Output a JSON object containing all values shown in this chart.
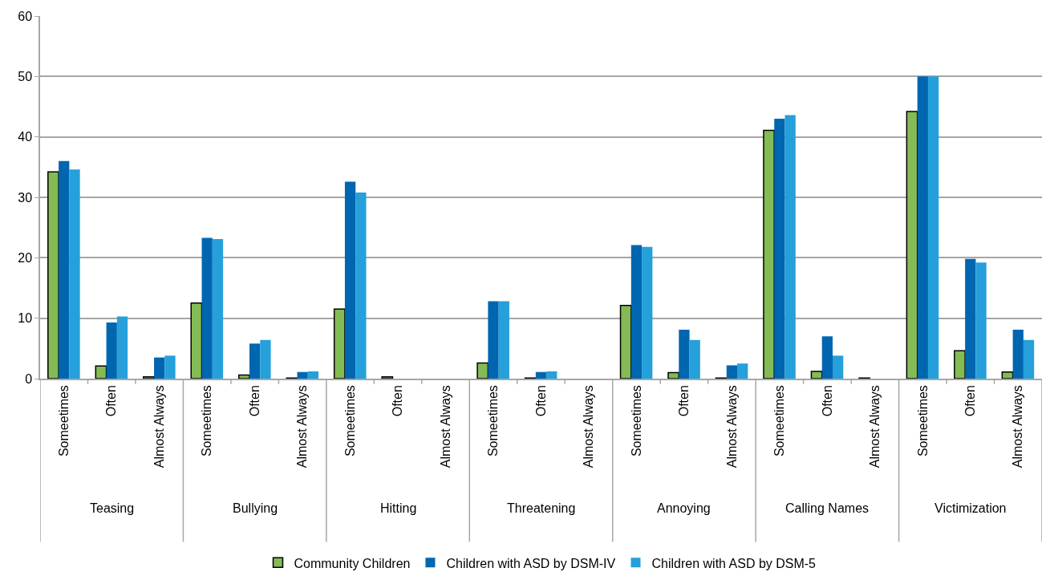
{
  "chart_data": {
    "type": "bar",
    "categories": [
      "Someetimes",
      "Often",
      "Almost Always",
      "Someetimes",
      "Often",
      "Almost Always",
      "Someetimes",
      "Often",
      "Almost Always",
      "Someetimes",
      "Often",
      "Almost Always",
      "Someetimes",
      "Often",
      "Almost Always",
      "Someetimes",
      "Often",
      "Almost Always",
      "Someetimes",
      "Often",
      "Almost Always"
    ],
    "annotations": [
      "Teasing",
      "Bullying",
      "Hitting",
      "Threatening",
      "Annoying",
      "Calling Names",
      "Victimization"
    ],
    "series": [
      {
        "name": "Community Children",
        "color": "#84bb55",
        "values": [
          34.2,
          2.1,
          0.3,
          12.5,
          0.6,
          0.1,
          11.5,
          0.3,
          0,
          2.6,
          0.1,
          0,
          12.1,
          1.0,
          0.1,
          41.1,
          1.2,
          0.1,
          44.2,
          4.6,
          1.1
        ]
      },
      {
        "name": "Children with ASD by DSM-IV",
        "color": "#0066b0",
        "values": [
          36,
          9.3,
          3.5,
          23.3,
          5.8,
          1.1,
          32.6,
          0,
          0,
          12.8,
          1.1,
          0,
          22.1,
          8.1,
          2.2,
          43,
          7.0,
          0,
          50,
          19.8,
          8.1
        ]
      },
      {
        "name": "Children with ASD by DSM-5",
        "color": "#25a0db",
        "values": [
          34.6,
          10.3,
          3.8,
          23.1,
          6.4,
          1.2,
          30.8,
          0,
          0,
          12.8,
          1.2,
          0,
          21.8,
          6.4,
          2.5,
          43.6,
          3.8,
          0,
          50,
          19.2,
          6.4
        ]
      }
    ],
    "ylim": [
      0,
      60
    ],
    "yticks": [
      0,
      10,
      20,
      30,
      40,
      50,
      60
    ],
    "grid": "y",
    "legend": "bottom"
  }
}
